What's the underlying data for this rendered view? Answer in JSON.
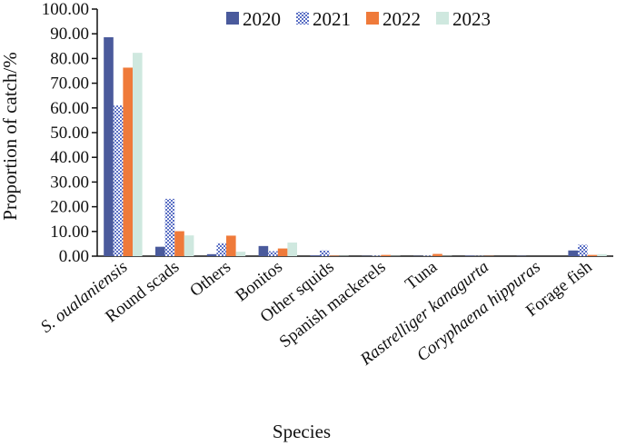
{
  "chart_data": {
    "type": "bar",
    "title": "",
    "xlabel": "Species",
    "ylabel": "Proportion of catch/%",
    "ylim": [
      0,
      100
    ],
    "yticks": [
      "0.00",
      "10.00",
      "20.00",
      "30.00",
      "40.00",
      "50.00",
      "60.00",
      "70.00",
      "80.00",
      "90.00",
      "100.00"
    ],
    "legend_position": "top-right",
    "grid": false,
    "categories": [
      "S. oualaniensis",
      "Round scads",
      "Others",
      "Bonitos",
      "Other squids",
      "Spanish mackerels",
      "Tuna",
      "Rastrelliger kanagurta",
      "Coryphaena hippuras",
      "Forage fish"
    ],
    "italic_categories": [
      "S. oualaniensis",
      "Rastrelliger kanagurta",
      "Coryphaena hippuras"
    ],
    "series": [
      {
        "name": "2020",
        "color": "#4a5a9c",
        "pattern": "solid",
        "values": [
          88.6,
          3.8,
          0.8,
          4.1,
          0.3,
          0.1,
          0.1,
          0.2,
          0.1,
          2.3
        ]
      },
      {
        "name": "2021",
        "color": "#5a6fc4",
        "pattern": "checker",
        "values": [
          61.0,
          23.2,
          5.2,
          2.0,
          2.3,
          0.2,
          0.2,
          0.1,
          0.0,
          4.6
        ]
      },
      {
        "name": "2022",
        "color": "#ef7a3a",
        "pattern": "solid",
        "values": [
          76.3,
          10.1,
          8.3,
          3.1,
          0.2,
          0.5,
          0.9,
          0.1,
          0.0,
          0.5
        ]
      },
      {
        "name": "2023",
        "color": "#cfe8df",
        "pattern": "solid",
        "values": [
          82.3,
          8.4,
          1.8,
          5.5,
          0.1,
          0.1,
          0.1,
          0.0,
          0.0,
          0.8
        ]
      }
    ]
  }
}
